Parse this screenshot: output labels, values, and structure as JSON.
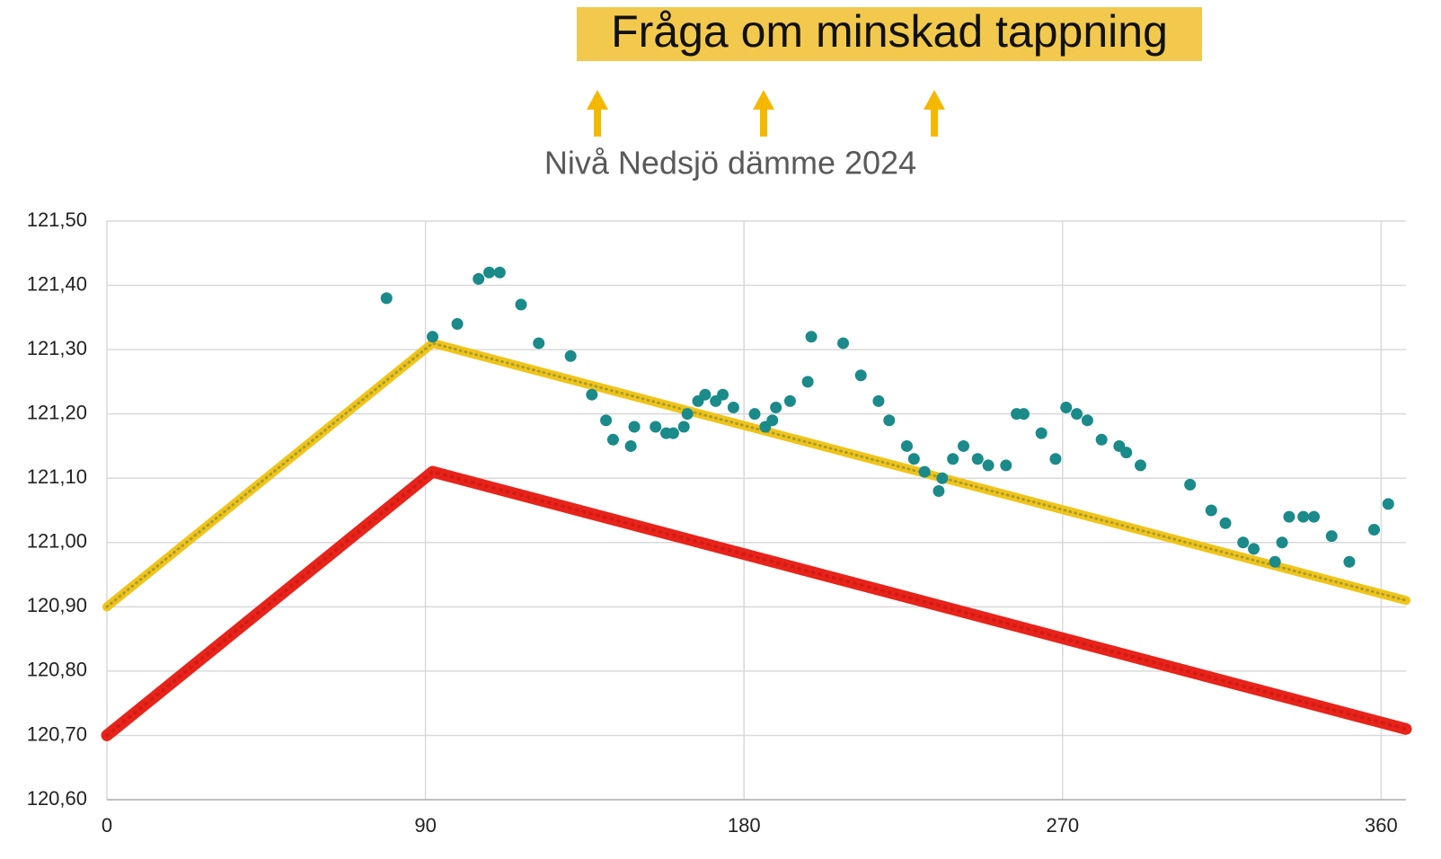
{
  "chart_data": {
    "type": "scatter",
    "annotation": "Fråga om minskad tappning",
    "title": "Nivå Nedsjö dämme 2024",
    "xlim": [
      0,
      367
    ],
    "xticks": [
      0,
      90,
      180,
      270,
      360
    ],
    "ylim": [
      120.6,
      121.5
    ],
    "yticks": [
      {
        "value": 120.6,
        "label": "120,60"
      },
      {
        "value": 120.7,
        "label": "120,70"
      },
      {
        "value": 120.8,
        "label": "120,80"
      },
      {
        "value": 120.9,
        "label": "120,90"
      },
      {
        "value": 121.0,
        "label": "121,00"
      },
      {
        "value": 121.1,
        "label": "121,10"
      },
      {
        "value": 121.2,
        "label": "121,20"
      },
      {
        "value": 121.3,
        "label": "121,30"
      },
      {
        "value": 121.4,
        "label": "121,40"
      },
      {
        "value": 121.5,
        "label": "121,50"
      }
    ],
    "grid": true,
    "series": [
      {
        "type": "line",
        "color": "#f0c419",
        "x": [
          0,
          92,
          367
        ],
        "values": [
          120.9,
          121.31,
          120.91
        ]
      },
      {
        "type": "line",
        "color": "#e8231a",
        "x": [
          0,
          92,
          367
        ],
        "values": [
          120.7,
          121.11,
          120.71
        ]
      },
      {
        "type": "scatter",
        "color": "#1a8a8a",
        "x": [
          79,
          92,
          99,
          105,
          108,
          111,
          117,
          122,
          131,
          137,
          141,
          143,
          148,
          149,
          155,
          158,
          160,
          163,
          164,
          167,
          169,
          172,
          174,
          177,
          183,
          186,
          188,
          189,
          193,
          198,
          199,
          208,
          213,
          218,
          221,
          226,
          228,
          231,
          235,
          236,
          239,
          242,
          246,
          249,
          254,
          257,
          259,
          264,
          268,
          271,
          274,
          277,
          281,
          286,
          288,
          292,
          306,
          312,
          316,
          321,
          324,
          330,
          332,
          334,
          338,
          341,
          346,
          351,
          358,
          362
        ],
        "values": [
          121.38,
          121.32,
          121.34,
          121.41,
          121.42,
          121.42,
          121.37,
          121.31,
          121.29,
          121.23,
          121.19,
          121.16,
          121.15,
          121.18,
          121.18,
          121.17,
          121.17,
          121.18,
          121.2,
          121.22,
          121.23,
          121.22,
          121.23,
          121.21,
          121.2,
          121.18,
          121.19,
          121.21,
          121.22,
          121.25,
          121.32,
          121.31,
          121.26,
          121.22,
          121.19,
          121.15,
          121.13,
          121.11,
          121.08,
          121.1,
          121.13,
          121.15,
          121.13,
          121.12,
          121.12,
          121.2,
          121.2,
          121.17,
          121.13,
          121.21,
          121.2,
          121.19,
          121.16,
          121.15,
          121.14,
          121.12,
          121.09,
          121.05,
          121.03,
          121.0,
          120.99,
          120.97,
          121.0,
          121.04,
          121.04,
          121.04,
          121.01,
          120.97,
          121.02,
          121.06
        ]
      }
    ]
  }
}
